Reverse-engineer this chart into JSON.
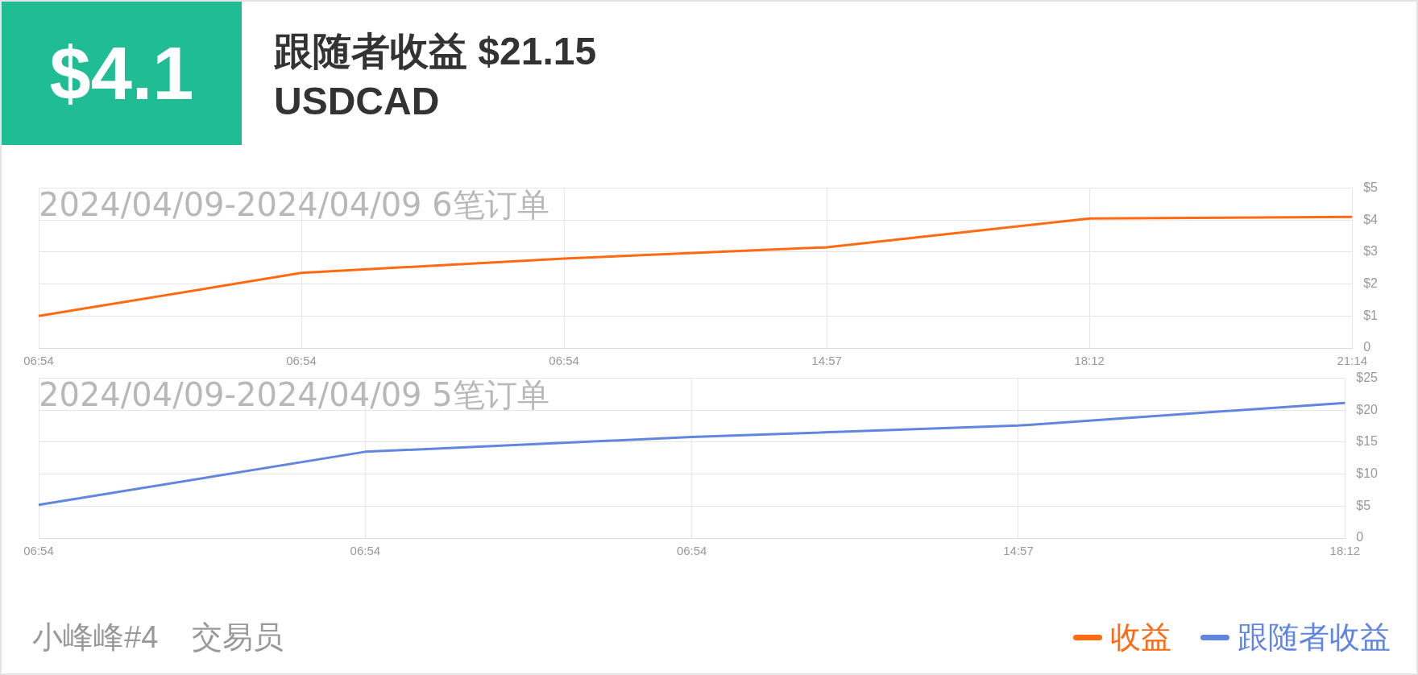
{
  "chart_data": [
    {
      "type": "other",
      "title": "跟随者收益 $21.15",
      "subtitle": "USDCAD",
      "annotations": [
        "$4.1",
        "小峰峰#4",
        "交易员"
      ]
    },
    {
      "type": "line",
      "annotations": [
        "2024/04/09-2024/04/09 6笔订单"
      ],
      "categories": [
        "06:54",
        "06:54",
        "06:54",
        "14:57",
        "18:12",
        "21:14"
      ],
      "series": [
        {
          "name": "收益",
          "color": "#ff6a13",
          "values": [
            1.0,
            2.35,
            2.8,
            3.15,
            4.05,
            4.1
          ]
        }
      ],
      "ylim": [
        0,
        5
      ],
      "yticks": [
        0,
        {
          "value": 1,
          "label": "$1"
        },
        {
          "value": 2,
          "label": "$2"
        },
        {
          "value": 3,
          "label": "$3"
        },
        {
          "value": 4,
          "label": "$4"
        },
        {
          "value": 5,
          "label": "$5"
        }
      ],
      "grid": true,
      "marker": "none",
      "legend": "bottom right"
    },
    {
      "type": "line",
      "annotations": [
        "2024/04/09-2024/04/09 5笔订单"
      ],
      "categories": [
        "06:54",
        "06:54",
        "06:54",
        "14:57",
        "18:12"
      ],
      "series": [
        {
          "name": "跟随者收益",
          "color": "#6285e0",
          "values": [
            5.2,
            13.5,
            15.8,
            17.6,
            21.15
          ]
        }
      ],
      "ylim": [
        0,
        25
      ],
      "yticks": [
        0,
        {
          "value": 5,
          "label": "$5"
        },
        {
          "value": 10,
          "label": "$10"
        },
        {
          "value": 15,
          "label": "$15"
        },
        {
          "value": 20,
          "label": "$20"
        },
        {
          "value": 25,
          "label": "$25"
        }
      ],
      "grid": true,
      "marker": "none",
      "legend": "bottom right"
    }
  ]
}
